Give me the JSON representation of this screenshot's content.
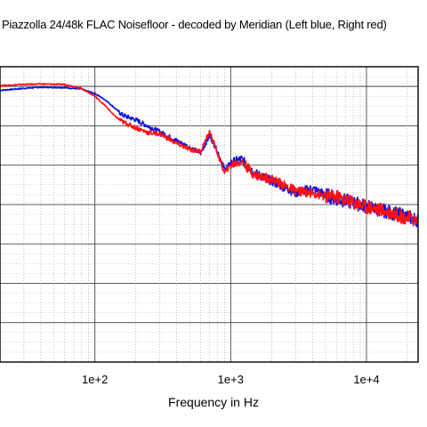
{
  "chart_data": {
    "type": "line",
    "title": "Piazzolla 24/48k FLAC Noisefloor -  decoded by Meridian (Left blue, Right red)",
    "xlabel": "Frequency  in Hz",
    "ylabel": "",
    "x_scale": "log",
    "xlim": [
      20,
      24000
    ],
    "ylim": [
      -150,
      -75
    ],
    "x_ticks": [
      100,
      1000,
      10000
    ],
    "x_tick_labels": [
      "1e+2",
      "1e+3",
      "1e+4"
    ],
    "grid": true,
    "series": [
      {
        "color": "#1010e0",
        "x": [
          20,
          30,
          40,
          60,
          80,
          100,
          120,
          140,
          160,
          200,
          250,
          300,
          400,
          500,
          600,
          700,
          800,
          900,
          1000,
          1200,
          1500,
          2000,
          3000,
          4000,
          5000,
          6000,
          8000,
          10000,
          15000,
          20000,
          24000
        ],
        "y": [
          -81,
          -80.5,
          -80.2,
          -80.3,
          -80.7,
          -81.8,
          -83.5,
          -85.5,
          -87.3,
          -88.5,
          -90.2,
          -91.5,
          -93.8,
          -95.5,
          -97,
          -92.5,
          -96.5,
          -101,
          -99.5,
          -98.5,
          -102,
          -104,
          -107,
          -106,
          -107.5,
          -108.5,
          -109.5,
          -110.5,
          -112,
          -113,
          -114
        ]
      },
      {
        "color": "#ff1010",
        "x": [
          20,
          30,
          40,
          60,
          80,
          100,
          120,
          140,
          160,
          200,
          250,
          300,
          400,
          500,
          600,
          700,
          800,
          900,
          1000,
          1200,
          1500,
          2000,
          3000,
          4000,
          5000,
          6000,
          8000,
          10000,
          15000,
          20000,
          24000
        ],
        "y": [
          -79.8,
          -79.5,
          -79.4,
          -79.5,
          -80.5,
          -82.5,
          -85,
          -87.5,
          -89,
          -90.5,
          -91.8,
          -92,
          -94.5,
          -96,
          -96.5,
          -91.5,
          -97,
          -102,
          -100,
          -99,
          -102.5,
          -103.5,
          -106.5,
          -107,
          -108,
          -108,
          -109.5,
          -110.5,
          -112,
          -113.5,
          -114
        ]
      }
    ]
  }
}
